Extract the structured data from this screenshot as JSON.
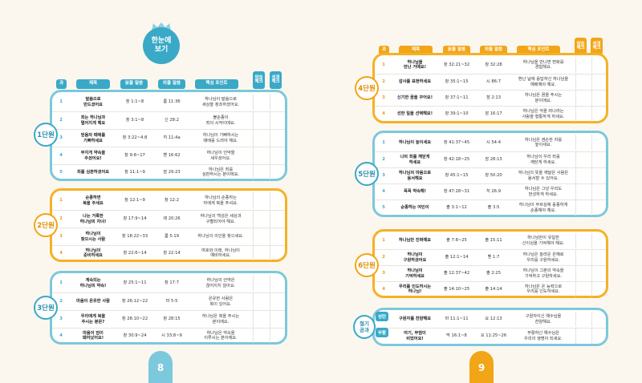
{
  "title": {
    "line1": "한눈에",
    "line2": "보기"
  },
  "headers": {
    "num": "과",
    "title": "제목",
    "ot": "읽을 말씀",
    "nt": "외울 말씀",
    "point": "핵심 포인트",
    "check1_l1": "암송",
    "check1_l2": "체크",
    "check2_l1": "성경",
    "check2_l2": "체크"
  },
  "units": {
    "u1": {
      "label": "1단원",
      "rows": [
        {
          "num": "1",
          "title": "말씀으로\n만드셨어요",
          "ot": "창 1:1~8",
          "nt": "롬 11:36",
          "point": "하나님이 말씀으로\n세상을 창조하셨어요."
        },
        {
          "num": "2",
          "title": "죄는 하나님과\n멀어지게 해요",
          "ot": "창 3:1~8",
          "nt": "신 28:2",
          "point": "불순종이\n죄의 시작이에요."
        },
        {
          "num": "3",
          "title": "믿음의 때에를\n기뻐하세요",
          "ot": "창 3:22~4:8",
          "nt": "히 11:4a",
          "point": "하나님이 기뻐하시는\n때에를 드려야 해요."
        },
        {
          "num": "4",
          "title": "무지개 약속을\n주셨어요!",
          "ot": "창 9:8~17",
          "nt": "벧 16:62",
          "point": "하나님이 언약을\n세우셨어요."
        },
        {
          "num": "5",
          "title": "죄를 심판하셨어요",
          "ot": "창 11:1~9",
          "nt": "잠 29:23",
          "point": "하나님은 죄를\n심판하시는 분이에요."
        }
      ]
    },
    "u2": {
      "label": "2단원",
      "rows": [
        {
          "num": "1",
          "title": "순종하면\n복을 주세요",
          "ot": "창 12:1~9",
          "nt": "창 12:2",
          "point": "하나님의 순종하는\n자에게 복을 주셔요."
        },
        {
          "num": "2",
          "title": "나는 거룩한\n하나님의 자녀!",
          "ot": "창 17:9~14",
          "nt": "레 20:26",
          "point": "하나님의 백성은 세상과\n구별되어야 해요."
        },
        {
          "num": "3",
          "title": "하나님이\n찾으시는 사람",
          "ot": "창 18:22~33",
          "nt": "롬 5:19",
          "point": "하나님이 의인을 찾으세요."
        },
        {
          "num": "4",
          "title": "하나님이\n준비하세요",
          "ot": "창 22:6~14",
          "nt": "창 22:14",
          "point": "여호와 이레, 하나님이\n예비하세요."
        }
      ]
    },
    "u3": {
      "label": "3단원",
      "rows": [
        {
          "num": "1",
          "title": "계속되는\n하나님의 약속!",
          "ot": "창 25:1~11",
          "nt": "창 17:7",
          "point": "하나님의 언약은\n끊어지지 않아요."
        },
        {
          "num": "2",
          "title": "마음이 온유한 사람",
          "ot": "창 26:12~22",
          "nt": "마 5:5",
          "point": "온유한 사람은\n복이 있어요."
        },
        {
          "num": "3",
          "title": "우리에게 복을\n주시는 분은?",
          "ot": "창 28:10~22",
          "nt": "창 28:15",
          "point": "하나님은 복을 주시는\n분이에요."
        },
        {
          "num": "4",
          "title": "마음이 엄이\n돼어났어요!",
          "ot": "창 30:9~24",
          "nt": "시 33:8~9",
          "point": "하나님은 약속을\n이루시는 분이에요."
        }
      ]
    },
    "u4": {
      "label": "4단원",
      "rows": [
        {
          "num": "1",
          "title": "하나님을\n만난 거예요!",
          "ot": "창 32:21~32",
          "nt": "창 32:28",
          "point": "하나님을 만나면 변화를\n경험해요."
        },
        {
          "num": "2",
          "title": "감사를 표현하세요",
          "ot": "창 35:1~15",
          "nt": "시 86:7",
          "point": "환난 날에 응답하신 하나님을\n예배해야 해요."
        },
        {
          "num": "3",
          "title": "신기한 꿈을 꾸어요!",
          "ot": "창 37:1~11",
          "nt": "잠 2:13",
          "point": "하나님은 꿈을 주시는\n분이에요."
        },
        {
          "num": "4",
          "title": "선한 일을 선택해요!",
          "ot": "창 39:1~10",
          "nt": "잠 16:17",
          "point": "하나님은 악을 떠나라는\n사람을 형통하게 하세요."
        }
      ]
    },
    "u5": {
      "label": "5단원",
      "rows": [
        {
          "num": "1",
          "title": "하나님이 높이세요",
          "ot": "창 41:37~45",
          "nt": "시 54:4",
          "point": "하나님은 겸손한 자를\n높이세요."
        },
        {
          "num": "2",
          "title": "나의 죄를 깨닫게\n하세요",
          "ot": "창 42:18~25",
          "nt": "잠 28:13",
          "point": "하나님이 우리 죄를\n깨닫게 하세요."
        },
        {
          "num": "3",
          "title": "하나님의 마음으로\n용서해요",
          "ot": "창 45:1~15",
          "nt": "창 50:20",
          "point": "하나님의 뜻을 깨달은 사람은\n용서할 수 있어요."
        },
        {
          "num": "4",
          "title": "꼭꼭 약속해!",
          "ot": "창 47:28~31",
          "nt": "히 26:9",
          "point": "하나님은 그냥 우리도\n번성하게 하세요."
        },
        {
          "num": "5",
          "title": "순종하는 여인이",
          "ot": "출 3:1~12",
          "nt": "출 3:5",
          "point": "하나님이 부르심에 응종하게\n순종해야 해요."
        }
      ]
    },
    "u6": {
      "label": "6단원",
      "rows": [
        {
          "num": "1",
          "title": "하나님만 진짜예요",
          "ot": "출 7:8~25",
          "nt": "출 15:11",
          "point": "하나님만이 유일한\n신이심을 기억해야 해요."
        },
        {
          "num": "2",
          "title": "하나님이\n구원하셨어요",
          "ot": "출 12:1~14",
          "nt": "벧 1:7",
          "point": "하나님은 놀라운 은혜로\n우리를 구원하세요."
        },
        {
          "num": "3",
          "title": "하나님이\n기억하세요",
          "ot": "출 12:37~42",
          "nt": "출 2:25",
          "point": "하나님이 그분의 약속을\n기억하고 구원하세요."
        },
        {
          "num": "4",
          "title": "우리를 인도하시는\n하나님!",
          "ot": "출 14:10~25",
          "nt": "출 14:14",
          "point": "하나님은 온 능력으로\n우리를 인도하세요."
        }
      ]
    },
    "special": {
      "label_l1": "절기",
      "label_l2": "공과",
      "rows": [
        {
          "tag": "성탄",
          "title": "구원자를 찬양해요",
          "ot": "마 11:1~11",
          "nt": "요 12:13",
          "point": "구원자이신 예수님을\n찬양해요."
        },
        {
          "tag": "부활",
          "title": "여기, 무덤이\n비었어요!",
          "ot": "막 16:1~8",
          "nt": "요 11:25~26",
          "point": "부활하신 예수님은\n우리의 생명이 되세요."
        }
      ]
    }
  },
  "pages": {
    "left": "8",
    "right": "9"
  },
  "colors": {
    "blue": "#3aa9c7",
    "orange": "#f2a516",
    "page_bg": "#fbf7ef"
  }
}
